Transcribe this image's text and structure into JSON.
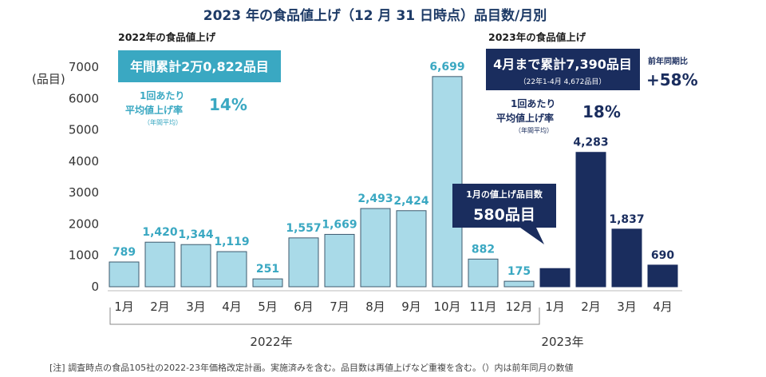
{
  "header": {
    "title": "2023 年の食品値上げ（12 月 31 日時点）品目数/月別",
    "sub2022": "2022年の食品値上げ",
    "sub2023": "2023年の食品値上げ"
  },
  "box2022": {
    "total": "年間累計2万0,822品目",
    "avg_label1": "1回あたり",
    "avg_label2": "平均値上げ率",
    "avg_note": "（年間平均）",
    "avg_value": "14%"
  },
  "box2023": {
    "total": "4月まで累計7,390品目",
    "total_note": "（22年1-4月 4,672品目）",
    "avg_label1": "1回あたり",
    "avg_label2": "平均値上げ率",
    "avg_note": "（年間平均）",
    "avg_value": "18%",
    "yoy_label": "前年同期比",
    "yoy_value": "+58%"
  },
  "callout": {
    "label": "1月の値上げ品目数",
    "value": "580品目"
  },
  "axis": {
    "y_unit": "(品目)",
    "year2022": "2022年",
    "year2023": "2023年"
  },
  "footnote": "[注] 調査時点の食品105社の2022-23年価格改定計画。実施済みを含む。品目数は再値上げなど重複を含む。（）内は前年同月の数値",
  "colors": {
    "bar2022": "#a9dae8",
    "bar2023": "#1a2d5e",
    "accent2022": "#3aa8c2",
    "accent2023": "#1a2d5e"
  },
  "chart_data": {
    "type": "bar",
    "ylim": [
      0,
      7000
    ],
    "yticks": [
      0,
      1000,
      2000,
      3000,
      4000,
      5000,
      6000,
      7000
    ],
    "bars": [
      {
        "x": "1月",
        "value": 789,
        "label": "789",
        "year": "2022"
      },
      {
        "x": "2月",
        "value": 1420,
        "label": "1,420",
        "year": "2022"
      },
      {
        "x": "3月",
        "value": 1344,
        "label": "1,344",
        "year": "2022"
      },
      {
        "x": "4月",
        "value": 1119,
        "label": "1,119",
        "year": "2022"
      },
      {
        "x": "5月",
        "value": 251,
        "label": "251",
        "year": "2022"
      },
      {
        "x": "6月",
        "value": 1557,
        "label": "1,557",
        "year": "2022"
      },
      {
        "x": "7月",
        "value": 1669,
        "label": "1,669",
        "year": "2022"
      },
      {
        "x": "8月",
        "value": 2493,
        "label": "2,493",
        "year": "2022"
      },
      {
        "x": "9月",
        "value": 2424,
        "label": "2,424",
        "year": "2022"
      },
      {
        "x": "10月",
        "value": 6699,
        "label": "6,699",
        "year": "2022"
      },
      {
        "x": "11月",
        "value": 882,
        "label": "882",
        "year": "2022"
      },
      {
        "x": "12月",
        "value": 175,
        "label": "175",
        "year": "2022"
      },
      {
        "x": "1月",
        "value": 580,
        "label": "",
        "year": "2023"
      },
      {
        "x": "2月",
        "value": 4283,
        "label": "4,283",
        "year": "2023"
      },
      {
        "x": "3月",
        "value": 1837,
        "label": "1,837",
        "year": "2023"
      },
      {
        "x": "4月",
        "value": 690,
        "label": "690",
        "year": "2023"
      }
    ]
  }
}
